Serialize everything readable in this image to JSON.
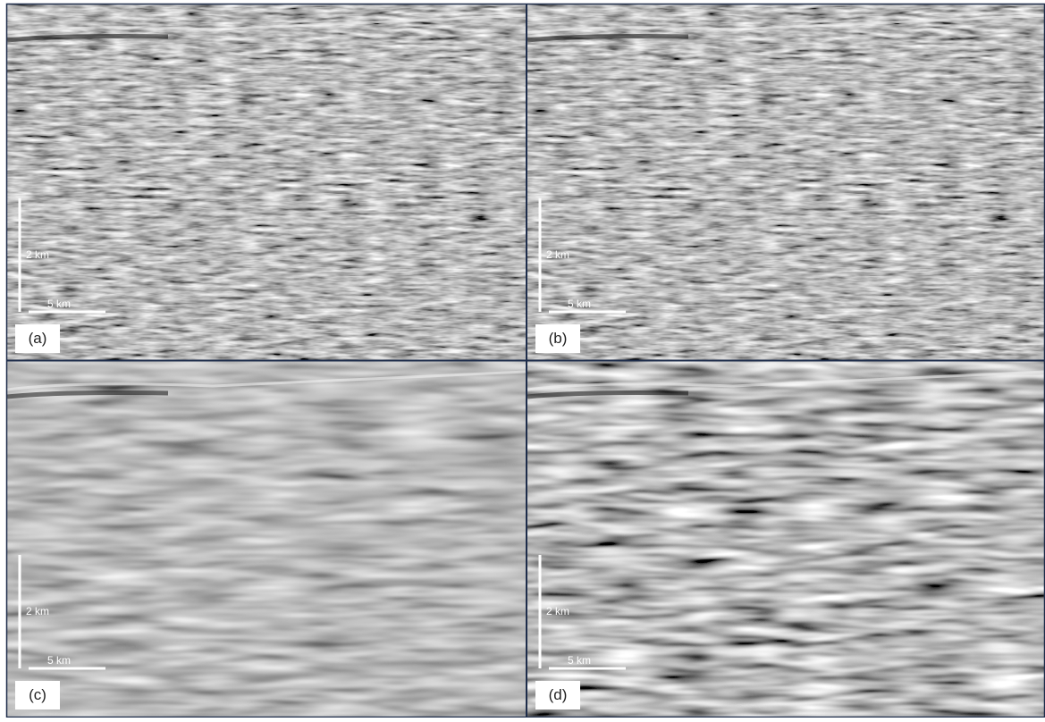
{
  "panels": [
    {
      "label": "(a)",
      "vertical_scale": "2 km",
      "horizontal_scale": "5 km"
    },
    {
      "label": "(b)",
      "vertical_scale": "2 km",
      "horizontal_scale": "5 km"
    },
    {
      "label": "(c)",
      "vertical_scale": "2 km",
      "horizontal_scale": "5 km"
    },
    {
      "label": "(d)",
      "vertical_scale": "2 km",
      "horizontal_scale": "5 km"
    }
  ]
}
